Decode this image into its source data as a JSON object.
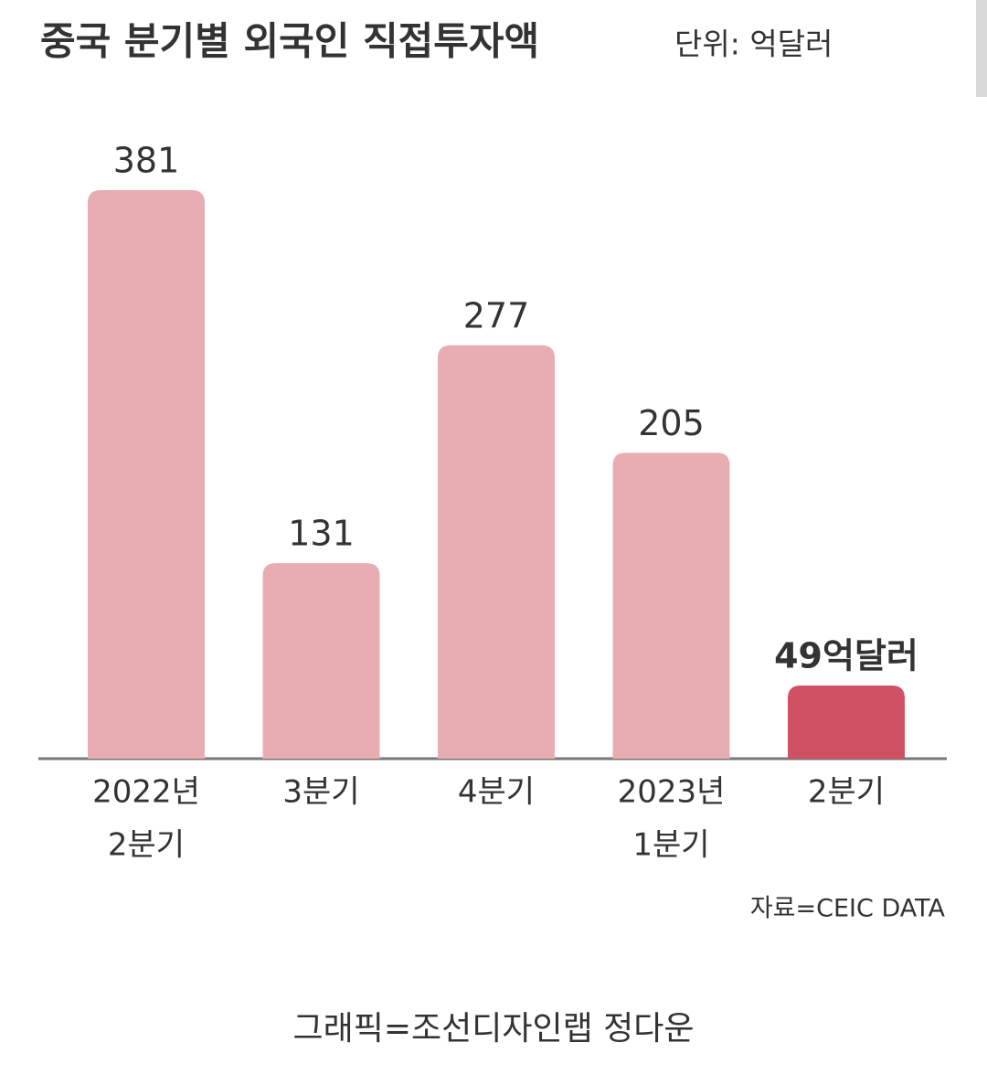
{
  "chart_data": {
    "type": "bar",
    "title": "중국 분기별 외국인 직접투자액",
    "unit": "단위: 억달러",
    "categories": [
      [
        "2022년",
        "2분기"
      ],
      [
        "3분기"
      ],
      [
        "4분기"
      ],
      [
        "2023년",
        "1분기"
      ],
      [
        "2분기"
      ]
    ],
    "values": [
      381,
      131,
      277,
      205,
      49
    ],
    "value_labels": [
      "381",
      "131",
      "277",
      "205",
      "49억달러"
    ],
    "colors": [
      "#e8adb3",
      "#e8adb3",
      "#e8adb3",
      "#e8adb3",
      "#cf5163"
    ],
    "source": "자료=CEIC DATA",
    "credit": "그래픽=조선디자인랩 정다운"
  }
}
